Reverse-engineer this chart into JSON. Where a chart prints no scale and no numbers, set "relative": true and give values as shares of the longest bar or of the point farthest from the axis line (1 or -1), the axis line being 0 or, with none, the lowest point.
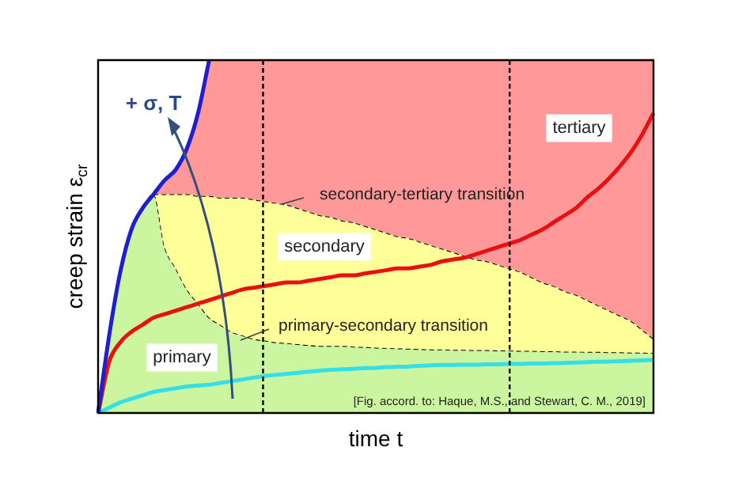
{
  "chart_data": {
    "type": "line",
    "relative": true,
    "legend": false,
    "marker": "none",
    "xlabel": "time t",
    "ylabel": "creep strain ε$_{cr}$",
    "categories": [
      null,
      null,
      null,
      null,
      null,
      null,
      null,
      null,
      null,
      null,
      null,
      null,
      null,
      null,
      null,
      null,
      null,
      null,
      null,
      null,
      null,
      null,
      null,
      null,
      null,
      null,
      null,
      null,
      null,
      null,
      null,
      null,
      null,
      null,
      null,
      null,
      null,
      null,
      null,
      null,
      null,
      null,
      null,
      null,
      null,
      null,
      null,
      null,
      null,
      null,
      null
    ],
    "annotations": [
      "+ σ, T",
      "tertiary",
      "secondary",
      "primary",
      "secondary-tertiary transition",
      "primary-secondary transition",
      "[Fig. accord. to: Haque, M.S., and Stewart, C. M., 2019]"
    ],
    "series": [
      {
        "type": "area",
        "color": "#ccf5a0",
        "line_style": "dashed",
        "values": [
          0,
          0.22,
          0.4,
          0.52,
          0.58,
          0.62,
          0.47,
          0.41,
          0.35,
          0.31,
          0.27,
          0.25,
          0.23,
          0.22,
          0.21,
          0.205,
          0.2,
          0.198,
          0.195,
          0.192,
          0.19,
          0.19,
          0.19,
          0.188,
          0.187,
          0.185,
          0.184,
          0.183,
          0.182,
          0.181,
          0.18,
          0.18,
          0.179,
          0.179,
          0.178,
          0.178,
          0.177,
          0.177,
          0.176,
          0.176,
          0.175,
          0.175,
          0.174,
          0.174,
          0.173,
          0.173,
          0.172,
          0.172,
          0.171,
          0.171,
          0.17
        ]
      },
      {
        "type": "area",
        "color": "#ffff99",
        "line_style": "dashed",
        "values": [
          null,
          null,
          null,
          null,
          null,
          0.62,
          0.62,
          0.62,
          0.62,
          0.615,
          0.615,
          0.61,
          0.61,
          0.61,
          0.605,
          0.6,
          0.595,
          0.59,
          0.58,
          0.57,
          0.56,
          0.555,
          0.545,
          0.54,
          0.53,
          0.52,
          0.51,
          0.5,
          0.495,
          0.485,
          0.475,
          0.465,
          0.455,
          0.445,
          0.435,
          0.43,
          0.42,
          0.41,
          0.4,
          0.385,
          0.37,
          0.36,
          0.345,
          0.335,
          0.32,
          0.305,
          0.29,
          0.275,
          0.26,
          0.235,
          0.21
        ]
      },
      {
        "type": "area",
        "color": "#ff9999",
        "values": [
          null,
          null,
          null,
          null,
          null,
          0.62,
          0.66,
          0.69,
          0.75,
          0.85,
          1,
          1,
          1,
          1,
          1,
          1,
          1,
          1,
          1,
          1,
          1,
          1,
          1,
          1,
          1,
          1,
          1,
          1,
          1,
          1,
          1,
          1,
          1,
          1,
          1,
          1,
          1,
          1,
          1,
          1,
          1,
          1,
          1,
          1,
          1,
          1,
          1,
          1,
          1,
          1,
          1
        ]
      },
      {
        "type": "line",
        "color": "#33e0ea",
        "values": [
          0,
          0.015,
          0.03,
          0.04,
          0.05,
          0.06,
          0.065,
          0.07,
          0.075,
          0.078,
          0.08,
          0.085,
          0.09,
          0.095,
          0.1,
          0.105,
          0.108,
          0.111,
          0.114,
          0.117,
          0.12,
          0.122,
          0.124,
          0.125,
          0.127,
          0.128,
          0.13,
          0.131,
          0.132,
          0.134,
          0.135,
          0.136,
          0.136,
          0.137,
          0.137,
          0.138,
          0.138,
          0.139,
          0.139,
          0.14,
          0.14,
          0.141,
          0.142,
          0.143,
          0.144,
          0.145,
          0.146,
          0.147,
          0.148,
          0.149,
          0.15
        ]
      },
      {
        "type": "line",
        "color": "#e81010",
        "values": [
          0,
          0.145,
          0.2,
          0.23,
          0.25,
          0.27,
          0.28,
          0.29,
          0.3,
          0.31,
          0.32,
          0.33,
          0.34,
          0.35,
          0.355,
          0.36,
          0.365,
          0.37,
          0.37,
          0.375,
          0.38,
          0.385,
          0.39,
          0.39,
          0.395,
          0.4,
          0.405,
          0.41,
          0.41,
          0.415,
          0.42,
          0.43,
          0.435,
          0.44,
          0.45,
          0.46,
          0.47,
          0.48,
          0.49,
          0.505,
          0.52,
          0.54,
          0.56,
          0.58,
          0.61,
          0.635,
          0.665,
          0.7,
          0.74,
          0.79,
          0.85
        ]
      },
      {
        "type": "line",
        "color": "#1f1fd0",
        "values": [
          0,
          0.22,
          0.4,
          0.52,
          0.58,
          0.62,
          0.66,
          0.69,
          0.75,
          0.85,
          1,
          null,
          null,
          null,
          null,
          null,
          null,
          null,
          null,
          null,
          null,
          null,
          null,
          null,
          null,
          null,
          null,
          null,
          null,
          null,
          null,
          null,
          null,
          null,
          null,
          null,
          null,
          null,
          null,
          null,
          null,
          null,
          null,
          null,
          null,
          null,
          null,
          null,
          null,
          null,
          null
        ]
      }
    ]
  }
}
